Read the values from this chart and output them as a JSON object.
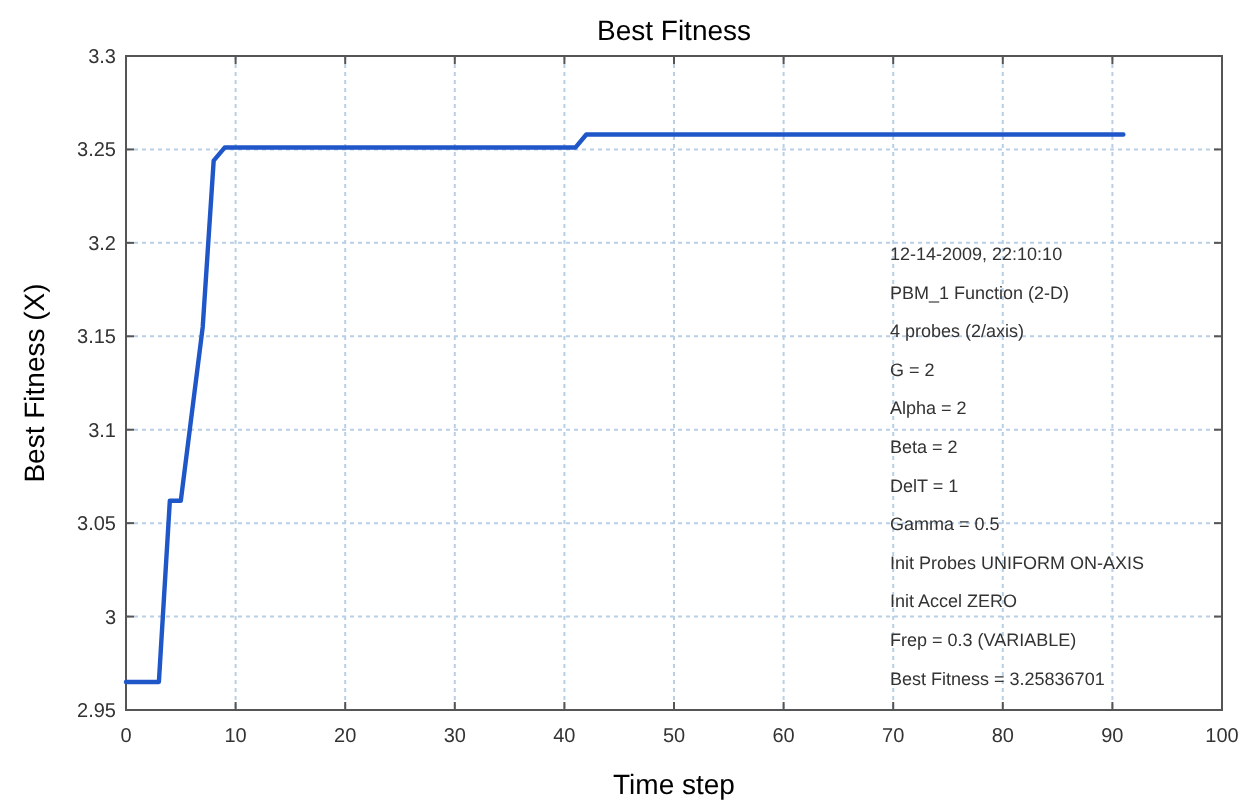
{
  "chart_data": {
    "type": "line",
    "title": "Best Fitness",
    "xlabel": "Time step",
    "ylabel": "Best Fitness (X)",
    "xlim": [
      0,
      100
    ],
    "xticks": [
      0,
      10,
      20,
      30,
      40,
      50,
      60,
      70,
      80,
      90,
      100
    ],
    "ylim": [
      2.95,
      3.3
    ],
    "yticks": [
      2.95,
      3,
      3.05,
      3.1,
      3.15,
      3.2,
      3.25,
      3.3
    ],
    "grid": true,
    "line_style": "solid",
    "series": [
      {
        "color": "#1f56c8",
        "x": [
          0,
          3,
          4,
          5,
          7,
          8,
          9,
          41,
          42,
          91
        ],
        "values": [
          2.965,
          2.965,
          3.062,
          3.062,
          3.155,
          3.244,
          3.251,
          3.251,
          3.258,
          3.258
        ]
      }
    ],
    "annotations": [
      "12-14-2009, 22:10:10",
      "PBM_1 Function (2-D)",
      "4 probes (2/axis)",
      "G = 2",
      "Alpha = 2",
      "Beta = 2",
      "DelT = 1",
      "Gamma = 0.5",
      "Init Probes UNIFORM ON-AXIS",
      "Init Accel ZERO",
      "Frep = 0.3 (VARIABLE)",
      "Best Fitness = 3.25836701"
    ]
  }
}
